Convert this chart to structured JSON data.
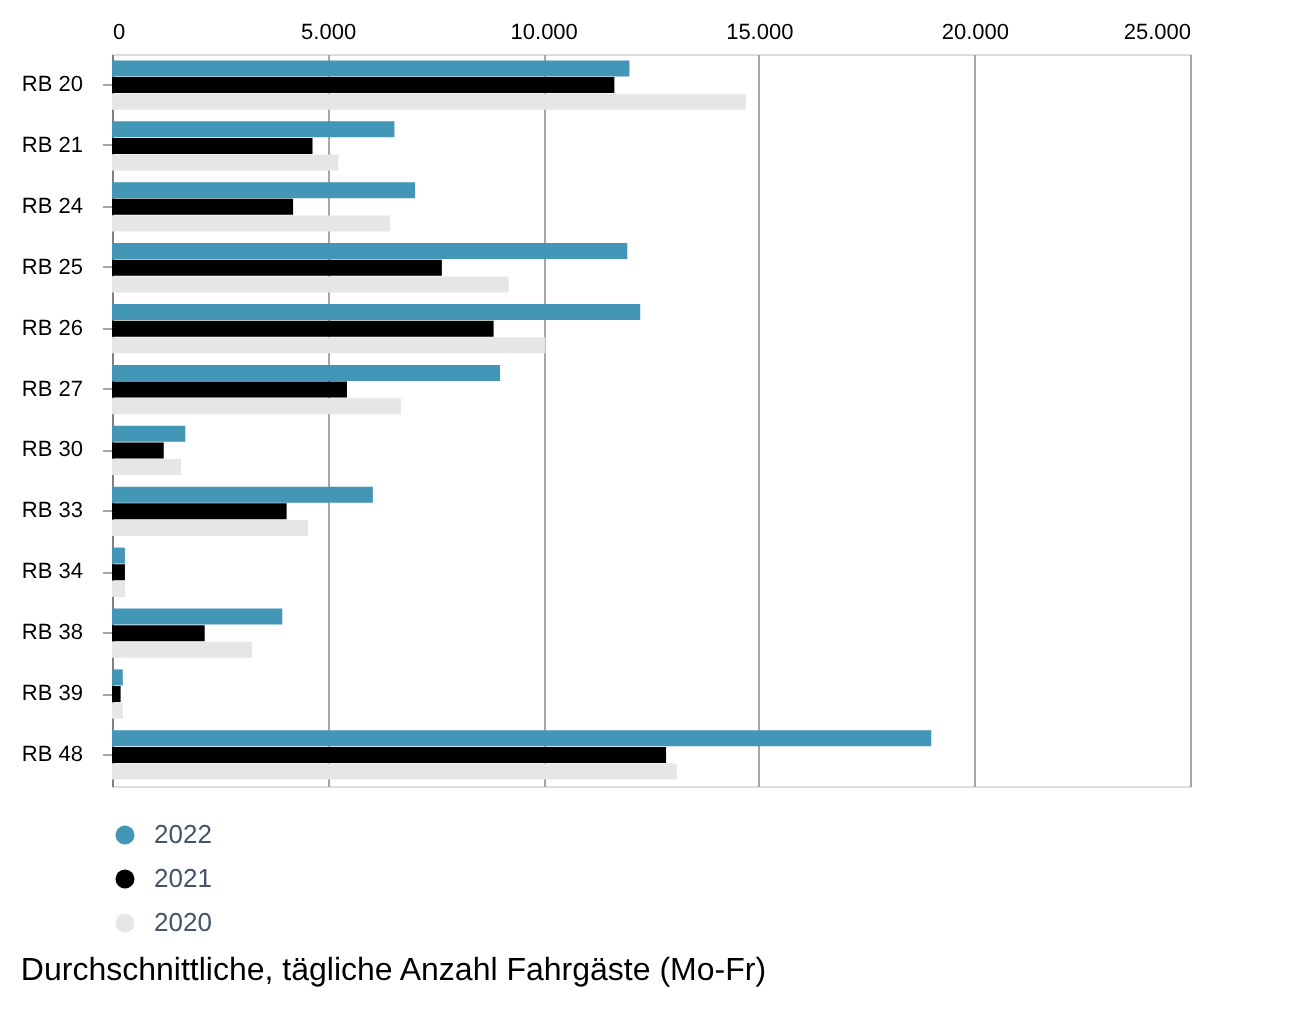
{
  "chart_data": {
    "type": "bar",
    "orientation": "horizontal",
    "title": "Durchschnittliche, tägliche Anzahl Fahrgäste (Mo-Fr)",
    "categories": [
      "RB 20",
      "RB 21",
      "RB 24",
      "RB 25",
      "RB 26",
      "RB 27",
      "RB 30",
      "RB 33",
      "RB 34",
      "RB 38",
      "RB 39",
      "RB 48"
    ],
    "series": [
      {
        "name": "2022",
        "color": "#4396b6",
        "values": [
          12000,
          6550,
          7030,
          11950,
          12250,
          9000,
          1700,
          6050,
          300,
          3950,
          250,
          19000
        ]
      },
      {
        "name": "2021",
        "color": "#000000",
        "values": [
          11650,
          4650,
          4200,
          7650,
          8850,
          5450,
          1200,
          4050,
          300,
          2150,
          200,
          12850
        ]
      },
      {
        "name": "2020",
        "color": "#e6e6e6",
        "values": [
          14700,
          5250,
          6450,
          9200,
          10050,
          6700,
          1600,
          4550,
          300,
          3250,
          250,
          13100
        ]
      }
    ],
    "xlim": [
      0,
      25000
    ],
    "xticks": [
      {
        "value": 0,
        "label": "0"
      },
      {
        "value": 5000,
        "label": "5.000"
      },
      {
        "value": 10000,
        "label": "10.000"
      },
      {
        "value": 15000,
        "label": "15.000"
      },
      {
        "value": 20000,
        "label": "20.000"
      },
      {
        "value": 25000,
        "label": "25.000"
      }
    ],
    "grid": "x",
    "legend": "bottom left"
  }
}
